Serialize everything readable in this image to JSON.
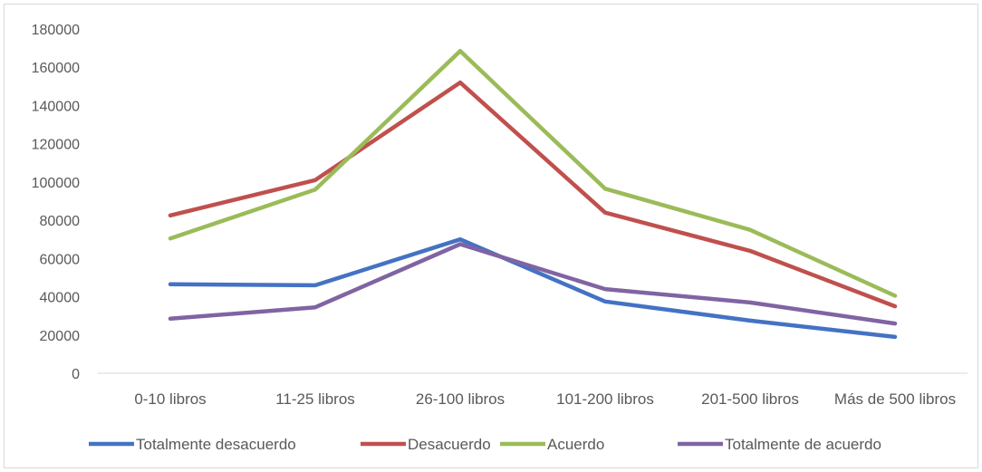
{
  "chart_data": {
    "type": "line",
    "title": "",
    "xlabel": "",
    "ylabel": "",
    "categories": [
      "0-10 libros",
      "11-25 libros",
      "26-100 libros",
      "101-200 libros",
      "201-500 libros",
      "Más de 500 libros"
    ],
    "ylim": [
      0,
      180000
    ],
    "yticks": [
      0,
      20000,
      40000,
      60000,
      80000,
      100000,
      120000,
      140000,
      160000,
      180000
    ],
    "grid": false,
    "legend_position": "bottom",
    "series": [
      {
        "name": "Totalmente desacuerdo",
        "color": "#4472c4",
        "values": [
          46500,
          46000,
          70000,
          37500,
          27500,
          19000
        ]
      },
      {
        "name": "Desacuerdo",
        "color": "#c0504d",
        "values": [
          82500,
          101000,
          152000,
          84000,
          64000,
          35000
        ]
      },
      {
        "name": "Acuerdo",
        "color": "#9bbb59",
        "values": [
          70500,
          96000,
          168500,
          96500,
          75000,
          40500
        ]
      },
      {
        "name": "Totalmente de acuerdo",
        "color": "#8064a2",
        "values": [
          28500,
          34500,
          67500,
          44000,
          37000,
          26000
        ]
      }
    ]
  }
}
